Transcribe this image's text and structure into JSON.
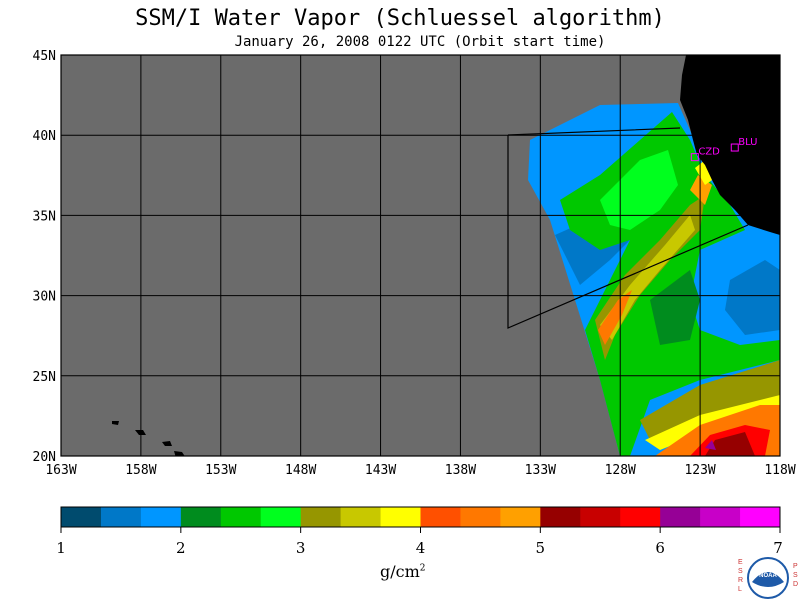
{
  "title": "SSM/I Water Vapor (Schluessel algorithm)",
  "subtitle": "January 26, 2008  0122 UTC  (Orbit start time)",
  "map": {
    "lat_labels": [
      "45N",
      "40N",
      "35N",
      "30N",
      "25N",
      "20N"
    ],
    "lon_labels": [
      "163W",
      "158W",
      "153W",
      "148W",
      "143W",
      "138W",
      "133W",
      "128W",
      "123W",
      "118W"
    ],
    "stations": [
      {
        "code": "CZD",
        "lon": -123.3,
        "lat": 38.6
      },
      {
        "code": "BLU",
        "lon": -120.8,
        "lat": 39.2
      }
    ],
    "colors": {
      "no_data": "#6b6b6b",
      "land": "#000000",
      "station": "#ff00ff"
    }
  },
  "colorbar": {
    "tick_labels": [
      "1",
      "2",
      "3",
      "4",
      "5",
      "6",
      "7"
    ],
    "unit": "g/cm",
    "unit_exp": "2",
    "colors": [
      "#004b6e",
      "#0078c8",
      "#0096ff",
      "#008c1e",
      "#00c800",
      "#00ff1e",
      "#969600",
      "#c8c800",
      "#ffff00",
      "#ff5000",
      "#ff7800",
      "#ffa000",
      "#960000",
      "#c80000",
      "#ff0000",
      "#960096",
      "#c800c8",
      "#ff00ff"
    ]
  },
  "logo": {
    "left_letters": "ESRL",
    "right_letters": "PSD",
    "center_text": "NOAA"
  }
}
